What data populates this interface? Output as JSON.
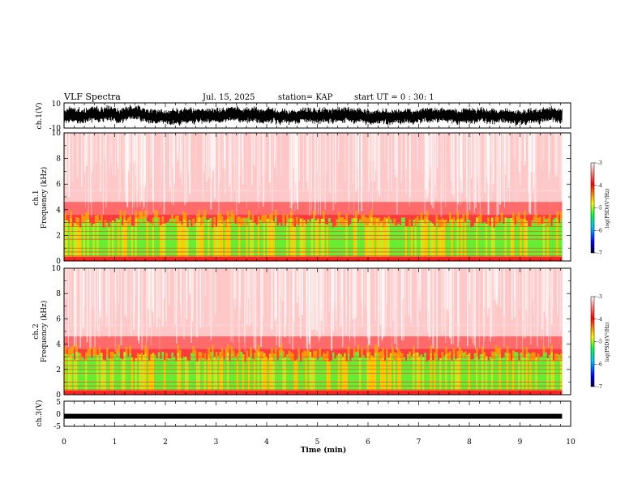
{
  "header": {
    "title": "VLF Spectra",
    "date": "Jul. 15, 2025",
    "station": "station= KAP",
    "start": "start  UT =   0 : 30: 1"
  },
  "chart_data": [
    {
      "type": "line",
      "name": "ch1-waveform",
      "ylabel": "ch.1(V)",
      "ylim": [
        -10,
        10
      ],
      "yticks": [
        "10",
        "-10"
      ],
      "xlim": [
        0,
        10
      ],
      "data_end_min": 9.83
    },
    {
      "type": "heatmap",
      "name": "ch1-spectrogram",
      "ylabel_line1": "ch.1",
      "ylabel_line2": "Frequency (kHz)",
      "ylim": [
        0,
        10
      ],
      "yticks": [
        "0",
        "2",
        "4",
        "6",
        "8",
        "10"
      ],
      "colorbar": {
        "label": "log(PSD)(V²/Hz)",
        "range": [
          -7,
          -3
        ],
        "ticks": [
          "-3",
          "-4",
          "-5",
          "-6",
          "-7"
        ],
        "colors": [
          "#000040",
          "#0000ff",
          "#00c0ff",
          "#00ff40",
          "#ffff00",
          "#ff8000",
          "#ff0000",
          "#ff9090",
          "#ffffff"
        ]
      }
    },
    {
      "type": "heatmap",
      "name": "ch2-spectrogram",
      "ylabel_line1": "ch.2",
      "ylabel_line2": "Frequency (kHz)",
      "ylim": [
        0,
        10
      ],
      "yticks": [
        "0",
        "2",
        "4",
        "6",
        "8",
        "10"
      ],
      "colorbar": {
        "label": "log(PSD)(V²/Hz)",
        "range": [
          -7,
          -3
        ],
        "ticks": [
          "-3",
          "-4",
          "-5",
          "-6",
          "-7"
        ],
        "colors": [
          "#000040",
          "#0000ff",
          "#00c0ff",
          "#00ff40",
          "#ffff00",
          "#ff8000",
          "#ff0000",
          "#ff9090",
          "#ffffff"
        ]
      }
    },
    {
      "type": "line",
      "name": "ch3-waveform",
      "ylabel": "ch.3(V)",
      "ylim": [
        -5,
        5
      ],
      "yticks": [
        "5",
        "0",
        "-5"
      ],
      "xlim": [
        0,
        10
      ],
      "level_v": -1.0
    }
  ],
  "xaxis": {
    "label": "Time (min)",
    "ticks": [
      "0",
      "1",
      "2",
      "3",
      "4",
      "5",
      "6",
      "7",
      "8",
      "9",
      "10"
    ]
  }
}
